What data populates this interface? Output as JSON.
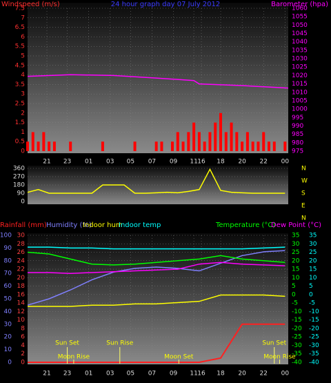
{
  "chart_data": [
    {
      "type": "combo",
      "title": "24 hour graph day 07 July 2012",
      "ylabel": "Windspeed (m/s)",
      "y2label": "Barometer (hpa)",
      "grid": true,
      "xlim": [
        0,
        24.3
      ],
      "xticks": [
        {
          "value": 1.8,
          "label": "21"
        },
        {
          "value": 3.7,
          "label": "23"
        },
        {
          "value": 5.7,
          "label": "01"
        },
        {
          "value": 7.7,
          "label": "03"
        },
        {
          "value": 9.6,
          "label": "05"
        },
        {
          "value": 11.6,
          "label": "07"
        },
        {
          "value": 13.6,
          "label": "09"
        },
        {
          "value": 15.5,
          "label": "11"
        },
        {
          "value": 16.2,
          "label": "16"
        },
        {
          "value": 18.0,
          "label": "18"
        },
        {
          "value": 20.0,
          "label": "20"
        },
        {
          "value": 22.0,
          "label": "22"
        },
        {
          "value": 24.0,
          "label": "00"
        }
      ],
      "ylim": [
        0,
        7.5
      ],
      "yticks": [
        0,
        0.5,
        1,
        1.5,
        2,
        2.5,
        3,
        3.5,
        4,
        4.5,
        5,
        5.5,
        6,
        6.5,
        7,
        7.5
      ],
      "y2lim": [
        975,
        1060
      ],
      "y2ticks": [
        975,
        980,
        985,
        990,
        995,
        1000,
        1005,
        1010,
        1015,
        1020,
        1025,
        1030,
        1035,
        1040,
        1045,
        1050,
        1055,
        1060
      ],
      "series": [
        {
          "type": "bar",
          "color": "#ff0000",
          "x": [
            0,
            0.5,
            1,
            1.5,
            2,
            2.5,
            3,
            3.5,
            4,
            4.5,
            5,
            5.5,
            6,
            6.5,
            7,
            7.5,
            8,
            8.5,
            9,
            9.5,
            10,
            10.5,
            11,
            11.5,
            12,
            12.5,
            13,
            13.5,
            14,
            14.5,
            15,
            15.5,
            16,
            16.5,
            17,
            17.5,
            18,
            18.5,
            19,
            19.5,
            20,
            20.5,
            21,
            21.5,
            22,
            22.5,
            23,
            23.5,
            24
          ],
          "values": [
            0.5,
            1,
            0.5,
            1,
            0.5,
            0.5,
            0,
            0,
            0.5,
            0,
            0,
            0,
            0,
            0,
            0.5,
            0,
            0,
            0,
            0,
            0,
            0.5,
            0,
            0,
            0,
            0.5,
            0.5,
            0,
            0.5,
            1,
            0.5,
            1,
            1.5,
            1,
            0.5,
            1,
            1.5,
            2,
            1,
            1.5,
            1,
            0.5,
            1,
            0.5,
            0.5,
            1,
            0.5,
            0.5,
            0,
            0.5
          ]
        },
        {
          "type": "line",
          "color": "#ff00ff",
          "axis": "y2",
          "x": [
            0,
            4,
            8,
            12,
            15.5,
            16,
            20,
            24.3
          ],
          "values": [
            1019.5,
            1020.5,
            1020,
            1018.5,
            1017,
            1015,
            1014,
            1012.5
          ]
        }
      ]
    },
    {
      "type": "line",
      "xlim": [
        0,
        24.3
      ],
      "ylim": [
        0,
        360
      ],
      "yticks": [
        0,
        90,
        180,
        270,
        360
      ],
      "compass": [
        "N",
        "W",
        "S",
        "E",
        "N"
      ],
      "x": [
        0,
        1,
        2,
        3,
        4,
        5,
        6,
        7,
        8,
        9,
        10,
        11,
        12,
        13,
        14,
        15,
        16,
        17,
        18,
        19,
        20,
        21,
        22,
        23,
        24
      ],
      "series": [
        {
          "color": "#ffff00",
          "values": [
            100,
            130,
            90,
            90,
            90,
            90,
            90,
            180,
            180,
            180,
            90,
            90,
            95,
            100,
            95,
            110,
            130,
            350,
            120,
            100,
            95,
            90,
            90,
            90,
            90
          ]
        }
      ]
    },
    {
      "type": "combo",
      "grid": true,
      "xlim": [
        0,
        24.3
      ],
      "xticks": [
        {
          "value": 1.8,
          "label": "21"
        },
        {
          "value": 3.7,
          "label": "23"
        },
        {
          "value": 5.7,
          "label": "01"
        },
        {
          "value": 7.7,
          "label": "03"
        },
        {
          "value": 9.6,
          "label": "05"
        },
        {
          "value": 11.6,
          "label": "07"
        },
        {
          "value": 13.6,
          "label": "09"
        },
        {
          "value": 15.5,
          "label": "11"
        },
        {
          "value": 16.2,
          "label": "16"
        },
        {
          "value": 18.0,
          "label": "18"
        },
        {
          "value": 20.0,
          "label": "20"
        },
        {
          "value": 22.0,
          "label": "22"
        },
        {
          "value": 24.0,
          "label": "00"
        }
      ],
      "ylim": [
        0,
        30
      ],
      "yticks": [
        0,
        2,
        4,
        6,
        8,
        10,
        12,
        14,
        16,
        18,
        20,
        22,
        24,
        26,
        28,
        30
      ],
      "y2lim": [
        -40,
        35
      ],
      "y2ticks": [
        -40,
        -35,
        -30,
        -25,
        -20,
        -15,
        -10,
        -5,
        0,
        5,
        10,
        15,
        20,
        25,
        30,
        35
      ],
      "y3lim": [
        0,
        100
      ],
      "y3ticks": [
        0,
        10,
        20,
        30,
        40,
        50,
        60,
        70,
        80,
        90,
        100
      ],
      "x": [
        0,
        2,
        4,
        6,
        8,
        10,
        12,
        14,
        16,
        18,
        20,
        22,
        24
      ],
      "series": [
        {
          "name": "Rainfall (mm)",
          "color": "#ff2020",
          "axis": "y",
          "values": [
            0,
            0,
            0,
            0,
            0,
            0,
            0,
            0,
            0,
            1,
            9,
            9,
            9
          ]
        },
        {
          "name": "Humidity (%)",
          "color": "#8080ff",
          "axis": "y3",
          "values": [
            45,
            50,
            57,
            65,
            71,
            74,
            75,
            74,
            72,
            78,
            84,
            87,
            88
          ]
        },
        {
          "name": "Indoor hum",
          "color": "#ffff00",
          "axis": "y3",
          "values": [
            44,
            44,
            44,
            45,
            45,
            46,
            46,
            47,
            48,
            53,
            53,
            53,
            52
          ]
        },
        {
          "name": "Indoor temp",
          "color": "#00ffff",
          "axis": "y2",
          "values": [
            28,
            28,
            27.5,
            27.5,
            27,
            27,
            27,
            27,
            27,
            27,
            27,
            27.5,
            28
          ]
        },
        {
          "name": "Temperature (°C)",
          "color": "#00ff00",
          "axis": "y2",
          "values": [
            25,
            24,
            21,
            18,
            17.5,
            18,
            19,
            20,
            21,
            23,
            21,
            20,
            19
          ]
        },
        {
          "name": "Dew Point (°C)",
          "color": "#ff00ff",
          "axis": "y2",
          "values": [
            13,
            13,
            12.5,
            13,
            13.5,
            14,
            14.5,
            15,
            18,
            19,
            18,
            17.5,
            17
          ]
        }
      ],
      "sun_events": [
        {
          "text": "Sun Set",
          "x": 3.7
        },
        {
          "text": "Sun Rise",
          "x": 8.6
        },
        {
          "text": "Sun Set",
          "x": 23
        }
      ],
      "moon_events": [
        {
          "text": "Moon Rise",
          "x": 4.3
        },
        {
          "text": "Moon Set",
          "x": 14.1
        },
        {
          "text": "Moon Rise",
          "x": 23.5
        }
      ]
    }
  ]
}
